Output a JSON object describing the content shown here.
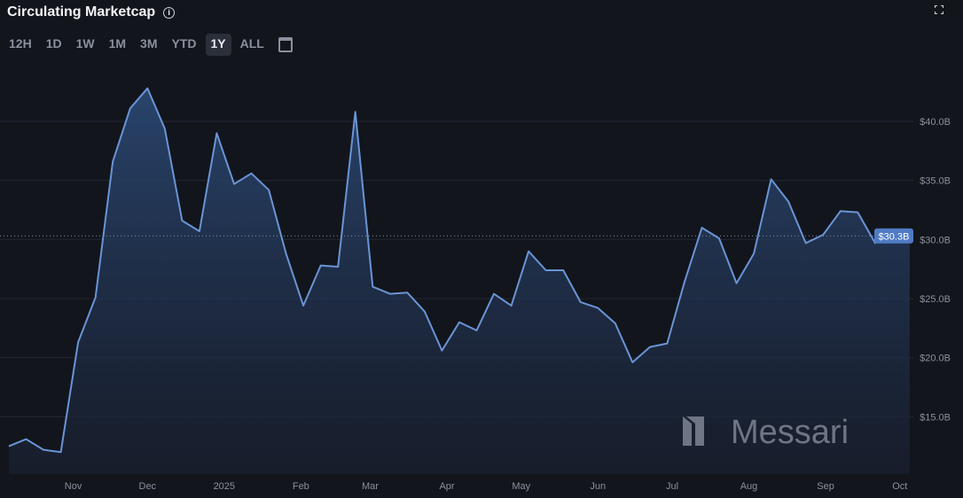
{
  "header": {
    "title": "Circulating Marketcap",
    "info_icon": "info-icon",
    "fullscreen_icon": "fullscreen-icon"
  },
  "ranges": [
    {
      "label": "12H"
    },
    {
      "label": "1D"
    },
    {
      "label": "1W"
    },
    {
      "label": "1M"
    },
    {
      "label": "3M"
    },
    {
      "label": "YTD"
    },
    {
      "label": "1Y",
      "active": true
    },
    {
      "label": "ALL"
    }
  ],
  "calendar_icon": "calendar-icon",
  "watermark": "Messari",
  "colors": {
    "line": "#6a94d6",
    "fill_top": "#2a4670",
    "background": "#12151c",
    "badge": "#4f7bc4"
  },
  "chart_data": {
    "type": "area",
    "title": "Circulating Marketcap",
    "ylim": [
      10,
      45
    ],
    "yticks": [
      15,
      20,
      25,
      30,
      35,
      40
    ],
    "ytick_labels": [
      "$15.0B",
      "$20.0B",
      "$25.0B",
      "$30.0B",
      "$35.0B",
      "$40.0B"
    ],
    "xticks": [
      "2024-11-01",
      "2024-12-01",
      "2025-01-01",
      "2025-02-01",
      "2025-03-01",
      "2025-04-01",
      "2025-05-01",
      "2025-06-01",
      "2025-07-01",
      "2025-08-01",
      "2025-09-01",
      "2025-10-01"
    ],
    "xtick_labels": [
      "Nov",
      "Dec",
      "2025",
      "Feb",
      "Mar",
      "Apr",
      "May",
      "Jun",
      "Jul",
      "Aug",
      "Sep",
      "Oct"
    ],
    "x_start": "2024-10-06",
    "x_interval": "weekly",
    "unit": "B USD",
    "values": [
      12.5,
      13.1,
      12.2,
      12.0,
      21.3,
      25.1,
      36.6,
      41.1,
      42.8,
      39.4,
      31.6,
      30.7,
      39.0,
      34.7,
      35.6,
      34.2,
      28.8,
      24.4,
      27.8,
      27.7,
      40.8,
      26.0,
      25.4,
      25.5,
      23.9,
      20.6,
      23.0,
      22.3,
      25.4,
      24.4,
      29.0,
      27.4,
      27.4,
      24.7,
      24.2,
      22.9,
      19.6,
      20.9,
      21.2,
      26.4,
      31.0,
      30.1,
      26.3,
      28.8,
      35.1,
      33.2,
      29.7,
      30.4,
      32.4,
      32.3,
      29.7,
      30.6,
      30.3
    ],
    "current_value_label": "$30.3B",
    "current_value": 30.3,
    "grid": true
  }
}
